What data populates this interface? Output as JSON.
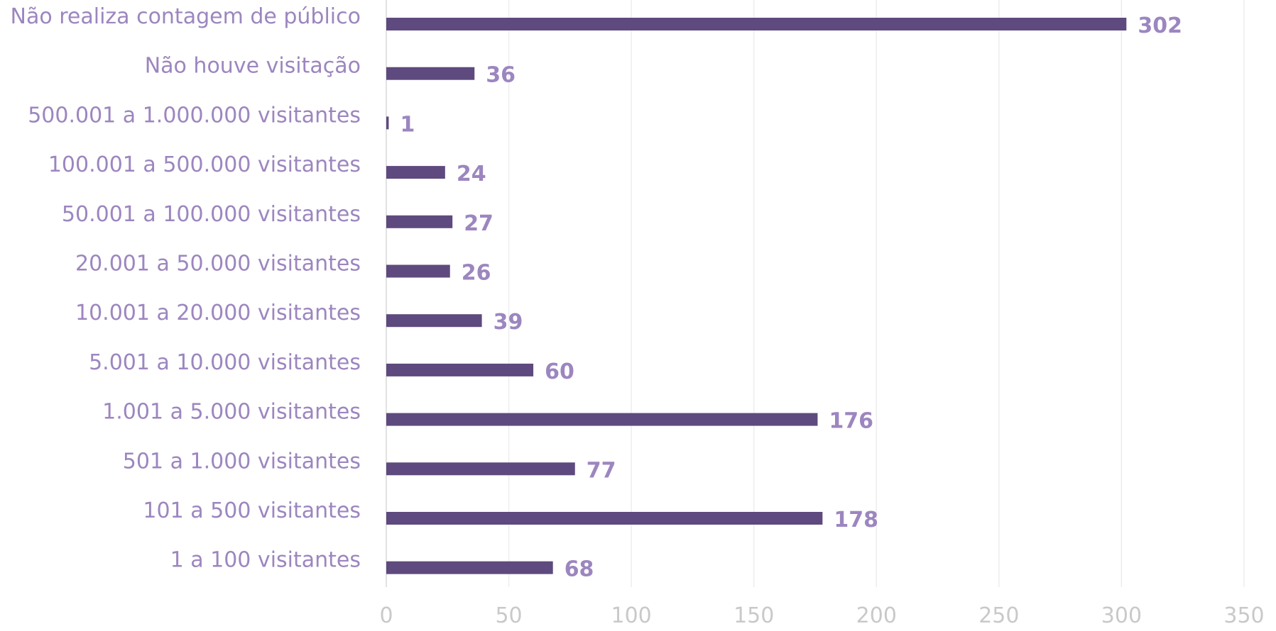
{
  "chart_data": {
    "type": "bar",
    "orientation": "horizontal",
    "categories": [
      "Não realiza contagem de público",
      "Não houve visitação",
      "500.001 a 1.000.000 visitantes",
      "100.001 a 500.000 visitantes",
      "50.001 a 100.000 visitantes",
      "20.001 a 50.000 visitantes",
      "10.001 a 20.000 visitantes",
      "5.001 a 10.000 visitantes",
      "1.001 a 5.000 visitantes",
      "501 a 1.000 visitantes",
      "101 a 500 visitantes",
      "1 a 100 visitantes"
    ],
    "values": [
      302,
      36,
      1,
      24,
      27,
      26,
      39,
      60,
      176,
      77,
      178,
      68
    ],
    "xlim": [
      0,
      350
    ],
    "xticks": [
      0,
      50,
      100,
      150,
      200,
      250,
      300,
      350
    ],
    "grid": true,
    "data_labels": true,
    "legend": "none",
    "title": "",
    "xlabel": "",
    "ylabel": "",
    "colors": {
      "bar": "#5E4A7E",
      "category_text": "#9C86BF",
      "value_text": "#9C86BF",
      "tick_text": "#C9C9C9",
      "grid": "#EDEDED"
    }
  }
}
